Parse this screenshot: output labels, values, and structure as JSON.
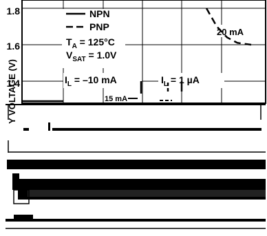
{
  "chart_data": {
    "type": "line",
    "ylabel": "Y VOLTAGE (V)",
    "y_ticks": [
      "1.8",
      "1.6",
      "1.4"
    ],
    "ylim_visible": [
      1.35,
      1.8
    ],
    "legend": {
      "series": [
        {
          "name": "NPN",
          "style": "solid"
        },
        {
          "name": "PNP",
          "style": "dashed"
        }
      ],
      "conditions": [
        {
          "sym": "T",
          "sub": "A",
          "text": " = 125°C"
        },
        {
          "sym": "V",
          "sub": "SAT",
          "text": " = 1.0V"
        }
      ]
    },
    "annotations": {
      "curve_20mA": "20 mA",
      "il_left": {
        "sym": "I",
        "sub": "L",
        "text": " = –10 mA"
      },
      "il_right": {
        "sym": "I",
        "sub": "L",
        "text": " = 1 µA"
      },
      "partial_label": "15 mA"
    },
    "series": [
      {
        "name": "PNP 20 mA",
        "style": "dashed",
        "points": [
          [
            0.84,
            1.8
          ],
          [
            0.9,
            1.7
          ],
          [
            0.96,
            1.64
          ],
          [
            1.02,
            1.61
          ],
          [
            1.1,
            1.6
          ]
        ]
      }
    ]
  },
  "colors": {
    "ink": "#000000",
    "bg": "#ffffff"
  }
}
